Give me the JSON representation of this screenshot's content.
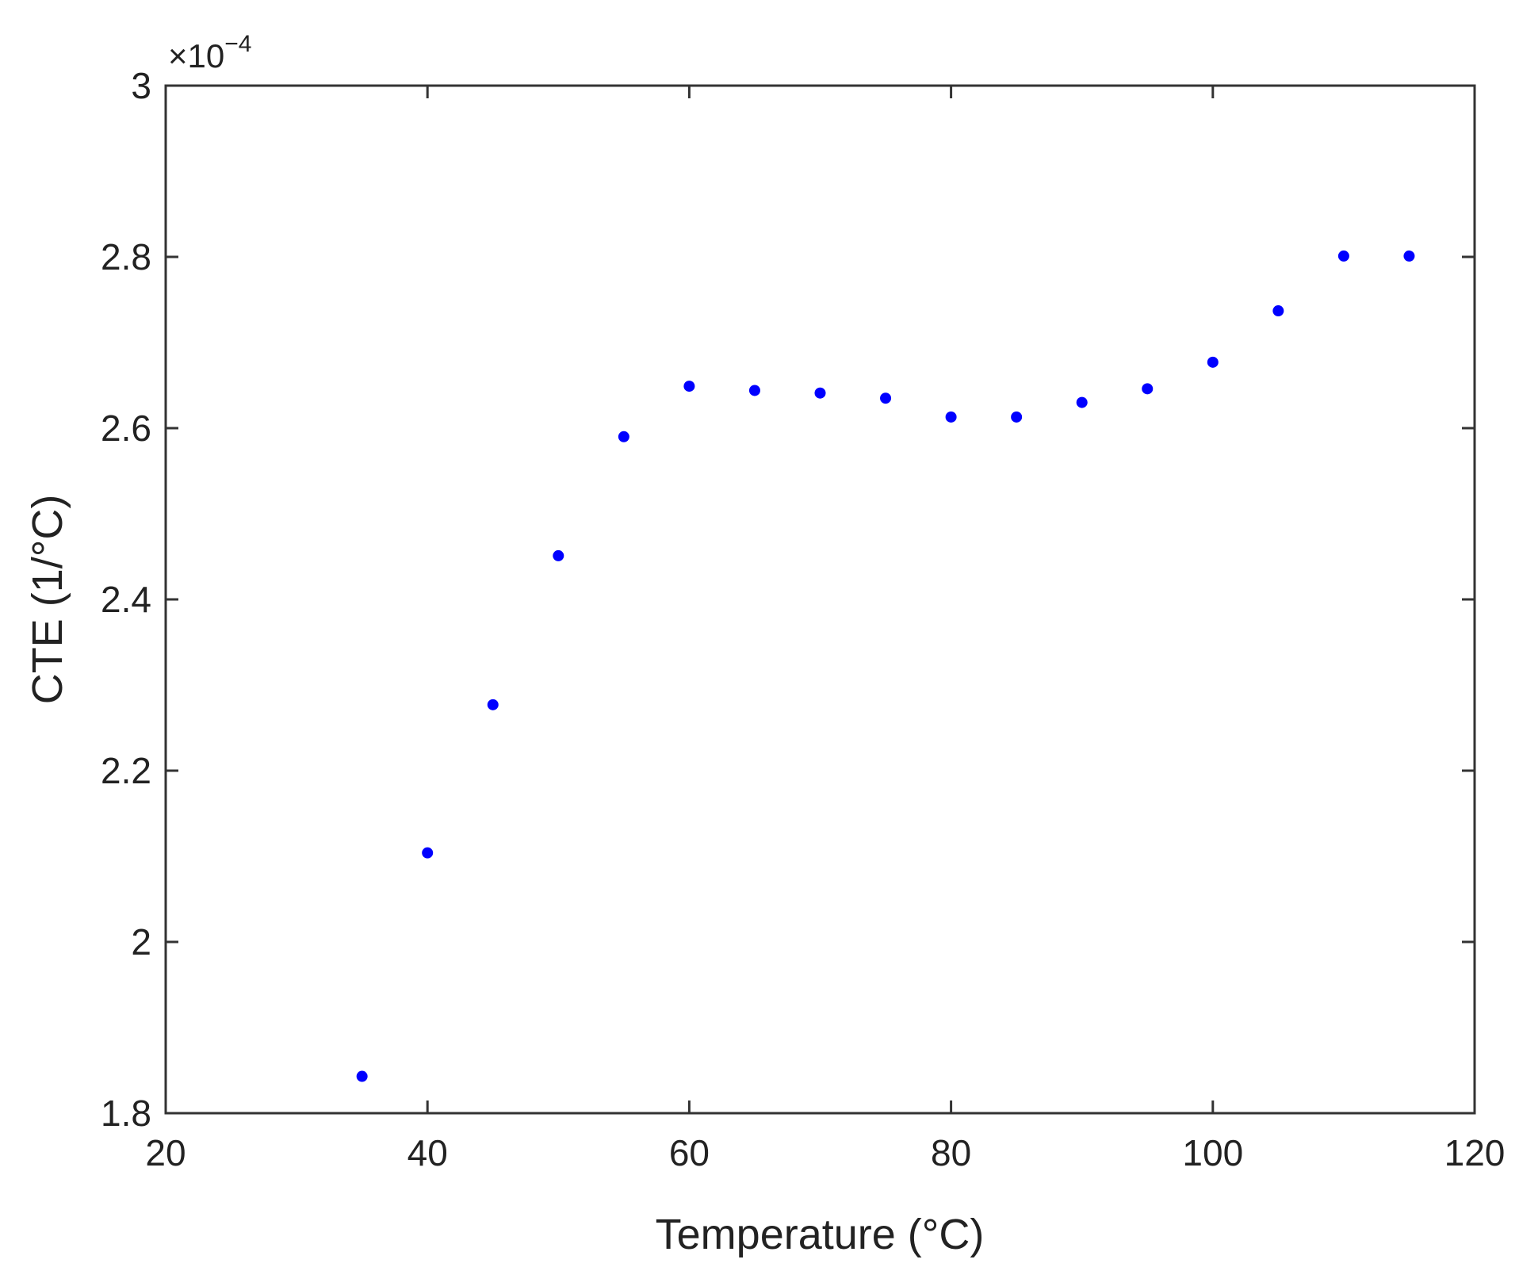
{
  "chart_data": {
    "type": "scatter",
    "xlabel": "Temperature (°C)",
    "ylabel": "CTE (1/°C)",
    "y_multiplier_base": "×10",
    "y_multiplier_exponent": "−4",
    "xlim": [
      20,
      120
    ],
    "ylim": [
      1.8,
      3.0
    ],
    "x_ticks": [
      20,
      40,
      60,
      80,
      100,
      120
    ],
    "x_tick_labels": [
      "20",
      "40",
      "60",
      "80",
      "100",
      "120"
    ],
    "y_ticks": [
      1.8,
      2.0,
      2.2,
      2.4,
      2.6,
      2.8,
      3.0
    ],
    "y_tick_labels": [
      "1.8",
      "2",
      "2.2",
      "2.4",
      "2.6",
      "2.8",
      "3"
    ],
    "grid": false,
    "marker_color": "#0000ff",
    "series": [
      {
        "x": [
          35,
          40,
          45,
          50,
          55,
          60,
          65,
          70,
          75,
          80,
          85,
          90,
          95,
          100,
          105,
          110,
          115
        ],
        "y": [
          1.843,
          2.104,
          2.277,
          2.451,
          2.59,
          2.649,
          2.644,
          2.641,
          2.635,
          2.613,
          2.613,
          2.63,
          2.646,
          2.677,
          2.737,
          2.801,
          2.801
        ]
      }
    ]
  }
}
